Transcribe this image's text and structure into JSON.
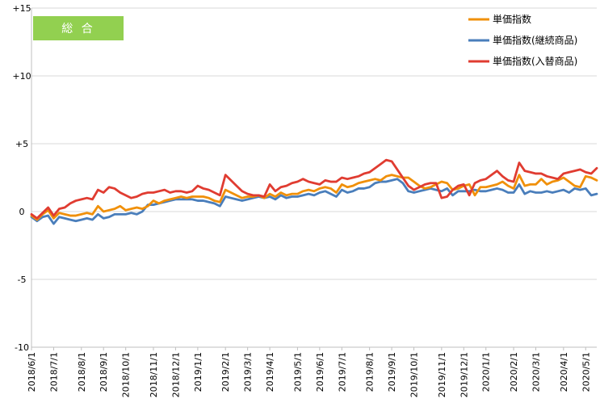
{
  "chart_data": {
    "type": "line",
    "badge": {
      "label": "総 合",
      "color": "#92d050"
    },
    "ylim": [
      -10,
      15
    ],
    "y_ticks": [
      {
        "value": 15,
        "label": "+15"
      },
      {
        "value": 10,
        "label": "+10"
      },
      {
        "value": 5,
        "label": "+5"
      },
      {
        "value": 0,
        "label": "0"
      },
      {
        "value": -5,
        "label": "-5"
      },
      {
        "value": -10,
        "label": "-10"
      }
    ],
    "x_ticks": [
      {
        "index": 0,
        "label": "2018/6/1"
      },
      {
        "index": 4,
        "label": "2018/7/1"
      },
      {
        "index": 9,
        "label": "2018/8/1"
      },
      {
        "index": 13,
        "label": "2018/9/1"
      },
      {
        "index": 17,
        "label": "2018/10/1"
      },
      {
        "index": 22,
        "label": "2018/11/1"
      },
      {
        "index": 26,
        "label": "2018/12/1"
      },
      {
        "index": 30,
        "label": "2019/1/1"
      },
      {
        "index": 35,
        "label": "2019/2/1"
      },
      {
        "index": 39,
        "label": "2019/3/1"
      },
      {
        "index": 43,
        "label": "2019/4/1"
      },
      {
        "index": 48,
        "label": "2019/5/1"
      },
      {
        "index": 52,
        "label": "2019/6/1"
      },
      {
        "index": 56,
        "label": "2019/7/1"
      },
      {
        "index": 61,
        "label": "2019/8/1"
      },
      {
        "index": 65,
        "label": "2019/9/1"
      },
      {
        "index": 69,
        "label": "2019/10/1"
      },
      {
        "index": 74,
        "label": "2019/11/1"
      },
      {
        "index": 78,
        "label": "2019/12/1"
      },
      {
        "index": 82,
        "label": "2020/1/1"
      },
      {
        "index": 87,
        "label": "2020/2/1"
      },
      {
        "index": 91,
        "label": "2020/3/1"
      },
      {
        "index": 96,
        "label": "2020/4/1"
      },
      {
        "index": 100,
        "label": "2020/5/1"
      }
    ],
    "point_count": 103,
    "series": [
      {
        "name": "単価指数",
        "color": "#f0900a",
        "values": [
          -0.3,
          -0.6,
          -0.2,
          0.1,
          -0.5,
          -0.1,
          -0.2,
          -0.3,
          -0.3,
          -0.2,
          -0.1,
          -0.2,
          0.4,
          0.0,
          0.1,
          0.2,
          0.4,
          0.1,
          0.2,
          0.3,
          0.2,
          0.4,
          0.8,
          0.6,
          0.8,
          0.9,
          1.0,
          1.1,
          1.0,
          1.1,
          1.1,
          1.1,
          1.0,
          0.8,
          0.7,
          1.6,
          1.4,
          1.2,
          1.0,
          1.1,
          1.1,
          1.2,
          1.0,
          1.3,
          1.1,
          1.4,
          1.2,
          1.3,
          1.3,
          1.5,
          1.6,
          1.5,
          1.7,
          1.8,
          1.7,
          1.4,
          2.0,
          1.8,
          1.9,
          2.1,
          2.2,
          2.3,
          2.4,
          2.3,
          2.6,
          2.7,
          2.6,
          2.5,
          2.5,
          2.2,
          1.9,
          1.7,
          1.8,
          2.0,
          2.2,
          2.1,
          1.6,
          1.7,
          1.9,
          2.0,
          1.2,
          1.8,
          1.8,
          1.9,
          2.0,
          2.2,
          1.9,
          1.7,
          2.7,
          1.9,
          2.0,
          2.0,
          2.4,
          2.0,
          2.2,
          2.3,
          2.5,
          2.2,
          1.9,
          1.8,
          2.6,
          2.5,
          2.3
        ]
      },
      {
        "name": "単価指数(継続商品)",
        "color": "#4a7ebb",
        "values": [
          -0.4,
          -0.7,
          -0.4,
          -0.3,
          -0.9,
          -0.4,
          -0.5,
          -0.6,
          -0.7,
          -0.6,
          -0.5,
          -0.6,
          -0.2,
          -0.5,
          -0.4,
          -0.2,
          -0.2,
          -0.2,
          -0.1,
          -0.2,
          0.0,
          0.5,
          0.5,
          0.6,
          0.7,
          0.8,
          0.9,
          0.9,
          0.9,
          0.9,
          0.8,
          0.8,
          0.7,
          0.6,
          0.4,
          1.1,
          1.0,
          0.9,
          0.8,
          0.9,
          1.0,
          1.1,
          1.0,
          1.1,
          0.9,
          1.2,
          1.0,
          1.1,
          1.1,
          1.2,
          1.3,
          1.2,
          1.4,
          1.5,
          1.3,
          1.1,
          1.6,
          1.4,
          1.5,
          1.7,
          1.7,
          1.8,
          2.1,
          2.2,
          2.2,
          2.3,
          2.4,
          2.1,
          1.5,
          1.4,
          1.5,
          1.6,
          1.7,
          1.6,
          1.5,
          1.7,
          1.2,
          1.5,
          1.5,
          1.5,
          1.6,
          1.5,
          1.5,
          1.6,
          1.7,
          1.6,
          1.4,
          1.4,
          2.0,
          1.3,
          1.5,
          1.4,
          1.4,
          1.5,
          1.4,
          1.5,
          1.6,
          1.4,
          1.7,
          1.6,
          1.7,
          1.2,
          1.3
        ]
      },
      {
        "name": "単価指数(入替商品)",
        "color": "#e03c31",
        "values": [
          -0.2,
          -0.5,
          -0.1,
          0.3,
          -0.3,
          0.2,
          0.3,
          0.6,
          0.8,
          0.9,
          1.0,
          0.9,
          1.6,
          1.4,
          1.8,
          1.7,
          1.4,
          1.2,
          1.0,
          1.1,
          1.3,
          1.4,
          1.4,
          1.5,
          1.6,
          1.4,
          1.5,
          1.5,
          1.4,
          1.5,
          1.9,
          1.7,
          1.6,
          1.4,
          1.2,
          2.7,
          2.3,
          1.9,
          1.5,
          1.3,
          1.2,
          1.2,
          1.1,
          2.0,
          1.5,
          1.8,
          1.9,
          2.1,
          2.2,
          2.4,
          2.2,
          2.1,
          2.0,
          2.3,
          2.2,
          2.2,
          2.5,
          2.4,
          2.5,
          2.6,
          2.8,
          2.9,
          3.2,
          3.5,
          3.8,
          3.7,
          3.1,
          2.5,
          1.9,
          1.6,
          1.8,
          2.0,
          2.1,
          2.1,
          1.0,
          1.1,
          1.6,
          1.9,
          2.0,
          1.2,
          2.1,
          2.3,
          2.4,
          2.7,
          3.0,
          2.6,
          2.3,
          2.2,
          3.6,
          3.0,
          2.9,
          2.8,
          2.8,
          2.6,
          2.5,
          2.4,
          2.8,
          2.9,
          3.0,
          3.1,
          2.9,
          2.8,
          3.2
        ]
      }
    ]
  }
}
